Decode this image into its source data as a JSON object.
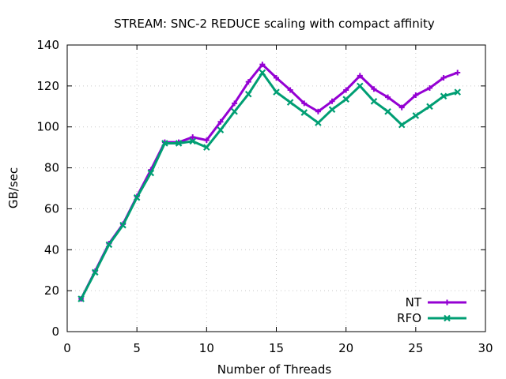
{
  "chart_data": {
    "type": "line",
    "title": "STREAM: SNC-2 REDUCE scaling with compact affinity",
    "xlabel": "Number of Threads",
    "ylabel": "GB/sec",
    "xlim": [
      0,
      30
    ],
    "ylim": [
      0,
      140
    ],
    "xticks": [
      0,
      5,
      10,
      15,
      20,
      25,
      30
    ],
    "yticks": [
      0,
      20,
      40,
      60,
      80,
      100,
      120,
      140
    ],
    "grid": true,
    "legend_position": "bottom-right",
    "x": [
      1,
      2,
      3,
      4,
      5,
      6,
      7,
      8,
      9,
      10,
      11,
      12,
      13,
      14,
      15,
      16,
      17,
      18,
      19,
      20,
      21,
      22,
      23,
      24,
      25,
      26,
      27,
      28
    ],
    "series": [
      {
        "name": "NT",
        "color": "#9400d3",
        "marker": "plus",
        "values": [
          16,
          29.5,
          43,
          52.5,
          66,
          79,
          92.5,
          92.5,
          95,
          93.5,
          102.5,
          111.5,
          122,
          130.5,
          124,
          118,
          111.5,
          107.5,
          112.5,
          118,
          125,
          118.5,
          114.5,
          109.5,
          115.5,
          119,
          124,
          126.5
        ]
      },
      {
        "name": "RFO",
        "color": "#009e73",
        "marker": "x",
        "values": [
          16,
          29,
          42.5,
          52,
          65.5,
          77.5,
          92,
          92,
          93,
          90,
          98.5,
          107.5,
          116,
          126.5,
          117,
          112,
          107,
          102,
          108.5,
          113.5,
          120,
          112.5,
          107.5,
          101,
          105.5,
          110,
          115,
          117
        ]
      }
    ]
  }
}
